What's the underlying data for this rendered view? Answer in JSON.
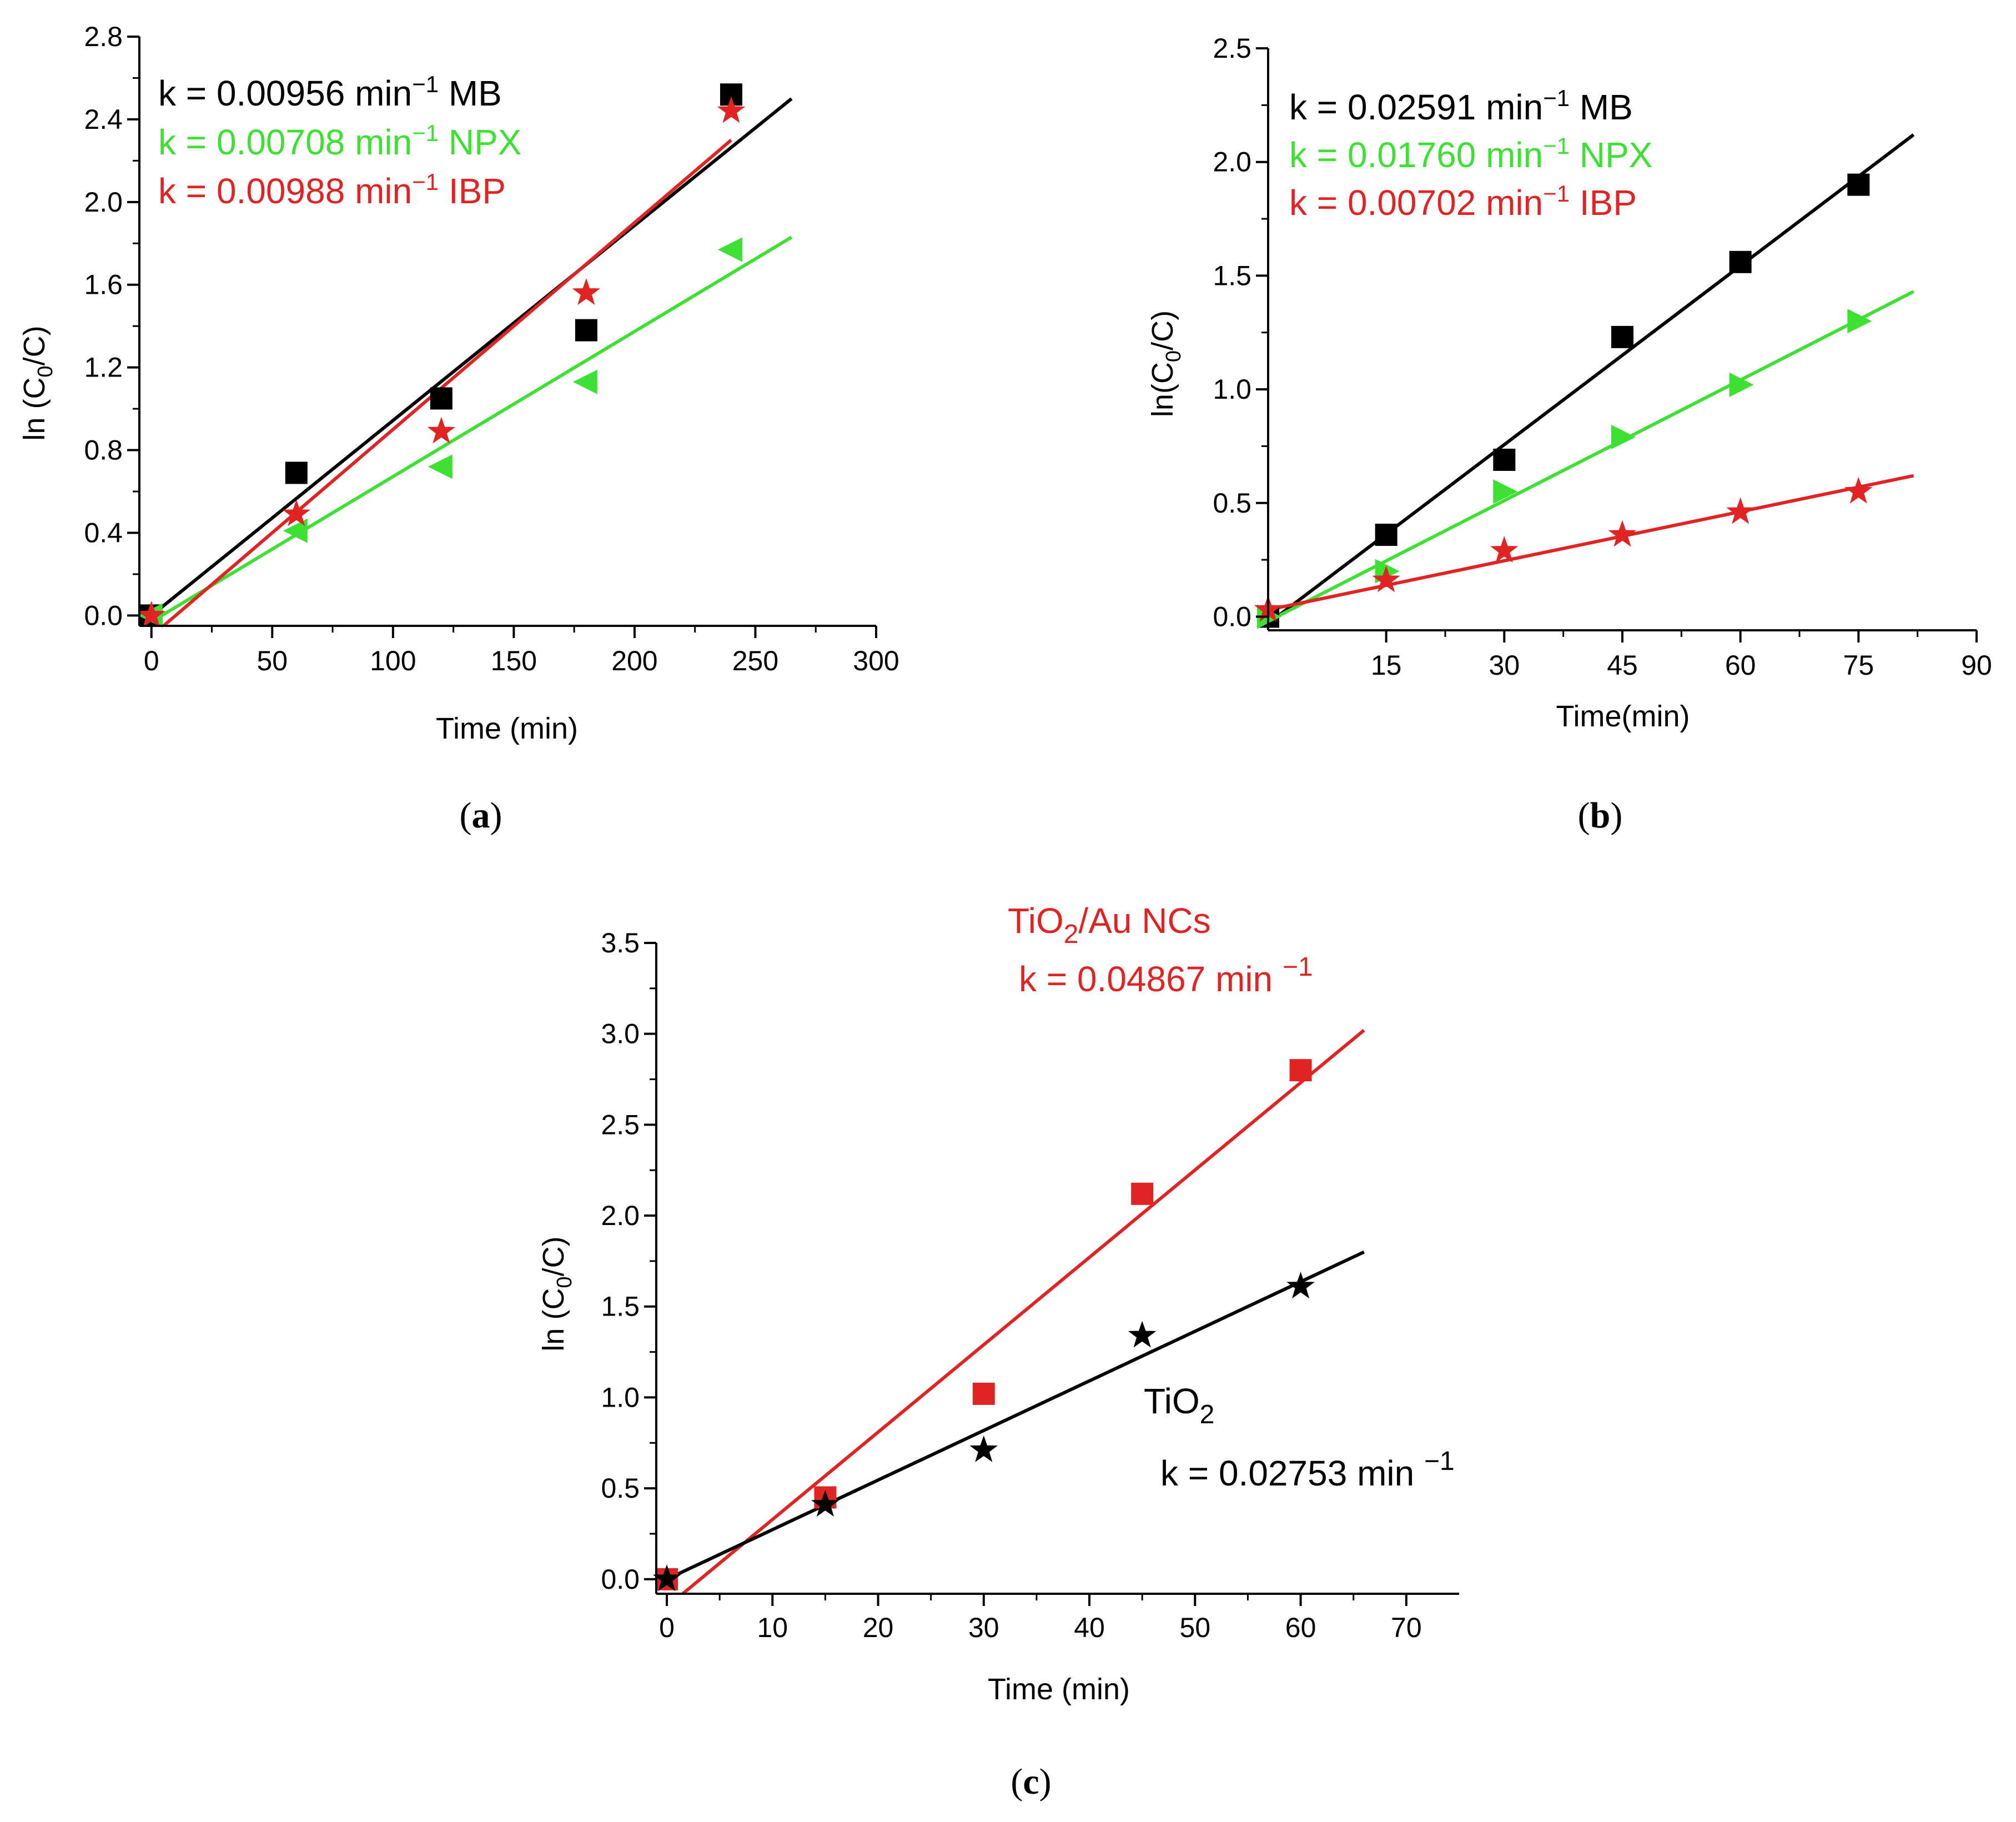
{
  "colors": {
    "black": "#000000",
    "green": "#3ee033",
    "red": "#e02424",
    "axis": "#000000"
  },
  "chart_data": [
    {
      "type": "scatter",
      "caption": "a",
      "xlabel": "Time (min)",
      "ylabel": "ln (C0/C)",
      "ylabel_parts": {
        "pre": "ln (C",
        "sub": "0",
        "post": "/C)"
      },
      "xlim": [
        -5,
        300
      ],
      "ylim": [
        -0.05,
        2.8
      ],
      "xticks": [
        0,
        50,
        100,
        150,
        200,
        250,
        300
      ],
      "xtick_labels": [
        "0",
        "50",
        "100",
        "150",
        "200",
        "250",
        "300"
      ],
      "yticks": [
        0.0,
        0.4,
        0.8,
        1.2,
        1.6,
        2.0,
        2.4,
        2.8
      ],
      "ytick_labels": [
        "0.0",
        "0.4",
        "0.8",
        "1.2",
        "1.6",
        "2.0",
        "2.4",
        "2.8"
      ],
      "series": [
        {
          "name": "MB",
          "color": "black",
          "marker": "square",
          "x": [
            0,
            60,
            120,
            180,
            240
          ],
          "y": [
            0.0,
            0.69,
            1.05,
            1.38,
            2.52
          ],
          "fit_line": [
            [
              0,
              0.0
            ],
            [
              265,
              2.5
            ]
          ]
        },
        {
          "name": "NPX",
          "color": "green",
          "marker": "triangle-left",
          "x": [
            0,
            60,
            120,
            180,
            240
          ],
          "y": [
            0.0,
            0.41,
            0.72,
            1.13,
            1.77
          ],
          "fit_line": [
            [
              0,
              -0.03
            ],
            [
              265,
              1.83
            ]
          ]
        },
        {
          "name": "IBP",
          "color": "red",
          "marker": "star",
          "x": [
            0,
            60,
            120,
            180,
            240
          ],
          "y": [
            0.0,
            0.49,
            0.89,
            1.56,
            2.44
          ],
          "fit_line": [
            [
              5,
              -0.05
            ],
            [
              240,
              2.3
            ]
          ]
        }
      ],
      "annotations": [
        {
          "pre": "k = 0.00956 min",
          "sup": "−1",
          "post": " MB",
          "color": "black"
        },
        {
          "pre": "k = 0.00708 min",
          "sup": "−1",
          "post": " NPX",
          "color": "green"
        },
        {
          "pre": "k = 0.00988 min",
          "sup": "−1",
          "post": " IBP",
          "color": "red"
        }
      ]
    },
    {
      "type": "scatter",
      "caption": "b",
      "xlabel": "Time(min)",
      "ylabel": "ln(C0/C)",
      "ylabel_parts": {
        "pre": "ln(C",
        "sub": "0",
        "post": "/C)"
      },
      "xlim": [
        0,
        90
      ],
      "ylim": [
        -0.06,
        2.5
      ],
      "xticks": [
        15,
        30,
        45,
        60,
        75,
        90
      ],
      "xtick_labels": [
        "15",
        "30",
        "45",
        "60",
        "75",
        "90"
      ],
      "yticks": [
        0.0,
        0.5,
        1.0,
        1.5,
        2.0,
        2.5
      ],
      "ytick_labels": [
        "0.0",
        "0.5",
        "1.0",
        "1.5",
        "2.0",
        "2.5"
      ],
      "series": [
        {
          "name": "MB",
          "color": "black",
          "marker": "square",
          "x": [
            0,
            15,
            30,
            45,
            60,
            75
          ],
          "y": [
            0.0,
            0.36,
            0.69,
            1.23,
            1.56,
            1.9
          ],
          "fit_line": [
            [
              0,
              -0.03
            ],
            [
              82,
              2.12
            ]
          ]
        },
        {
          "name": "NPX",
          "color": "green",
          "marker": "triangle-right",
          "x": [
            0,
            15,
            30,
            45,
            60,
            75
          ],
          "y": [
            0.0,
            0.2,
            0.55,
            0.79,
            1.02,
            1.3
          ],
          "fit_line": [
            [
              0,
              -0.02
            ],
            [
              82,
              1.43
            ]
          ]
        },
        {
          "name": "IBP",
          "color": "red",
          "marker": "star",
          "x": [
            0,
            15,
            30,
            45,
            60,
            75
          ],
          "y": [
            0.03,
            0.16,
            0.29,
            0.36,
            0.46,
            0.55
          ],
          "fit_line": [
            [
              0,
              0.03
            ],
            [
              82,
              0.62
            ]
          ]
        }
      ],
      "annotations": [
        {
          "pre": "k = 0.02591 min",
          "sup": "−1",
          "post": " MB",
          "color": "black"
        },
        {
          "pre": "k = 0.01760 min",
          "sup": "−1",
          "post": " NPX",
          "color": "green"
        },
        {
          "pre": "k = 0.00702 min",
          "sup": "−1",
          "post": " IBP",
          "color": "red"
        }
      ]
    },
    {
      "type": "scatter",
      "caption": "c",
      "xlabel": "Time (min)",
      "ylabel": "ln (C0/C)",
      "ylabel_parts": {
        "pre": "ln (C",
        "sub": "0",
        "post": "/C)"
      },
      "xlim": [
        -1,
        75
      ],
      "ylim": [
        -0.08,
        3.5
      ],
      "xticks": [
        0,
        10,
        20,
        30,
        40,
        50,
        60,
        70
      ],
      "xtick_labels": [
        "0",
        "10",
        "20",
        "30",
        "40",
        "50",
        "60",
        "70"
      ],
      "yticks": [
        0.0,
        0.5,
        1.0,
        1.5,
        2.0,
        2.5,
        3.0,
        3.5
      ],
      "ytick_labels": [
        "0.0",
        "0.5",
        "1.0",
        "1.5",
        "2.0",
        "2.5",
        "3.0",
        "3.5"
      ],
      "series": [
        {
          "name": "TiO2/Au NCs",
          "color": "red",
          "marker": "square",
          "x": [
            0,
            15,
            30,
            45,
            60
          ],
          "y": [
            0.0,
            0.45,
            1.02,
            2.12,
            2.8
          ],
          "fit_line": [
            [
              1.5,
              -0.08
            ],
            [
              66,
              3.02
            ]
          ]
        },
        {
          "name": "TiO2",
          "color": "black",
          "marker": "star",
          "x": [
            0,
            15,
            30,
            45,
            60
          ],
          "y": [
            0.0,
            0.41,
            0.71,
            1.34,
            1.61
          ],
          "fit_line": [
            [
              0,
              0.0
            ],
            [
              66,
              1.8
            ]
          ]
        }
      ],
      "labels": {
        "red_title": {
          "pre": "TiO",
          "sub": "2",
          "post": "/Au NCs"
        },
        "red_k": {
          "pre": "k = 0.04867 min ",
          "sup": "−1"
        },
        "black_title": {
          "pre": "TiO",
          "sub": "2"
        },
        "black_k": {
          "pre": "k = 0.02753 min ",
          "sup": "−1"
        }
      }
    }
  ]
}
